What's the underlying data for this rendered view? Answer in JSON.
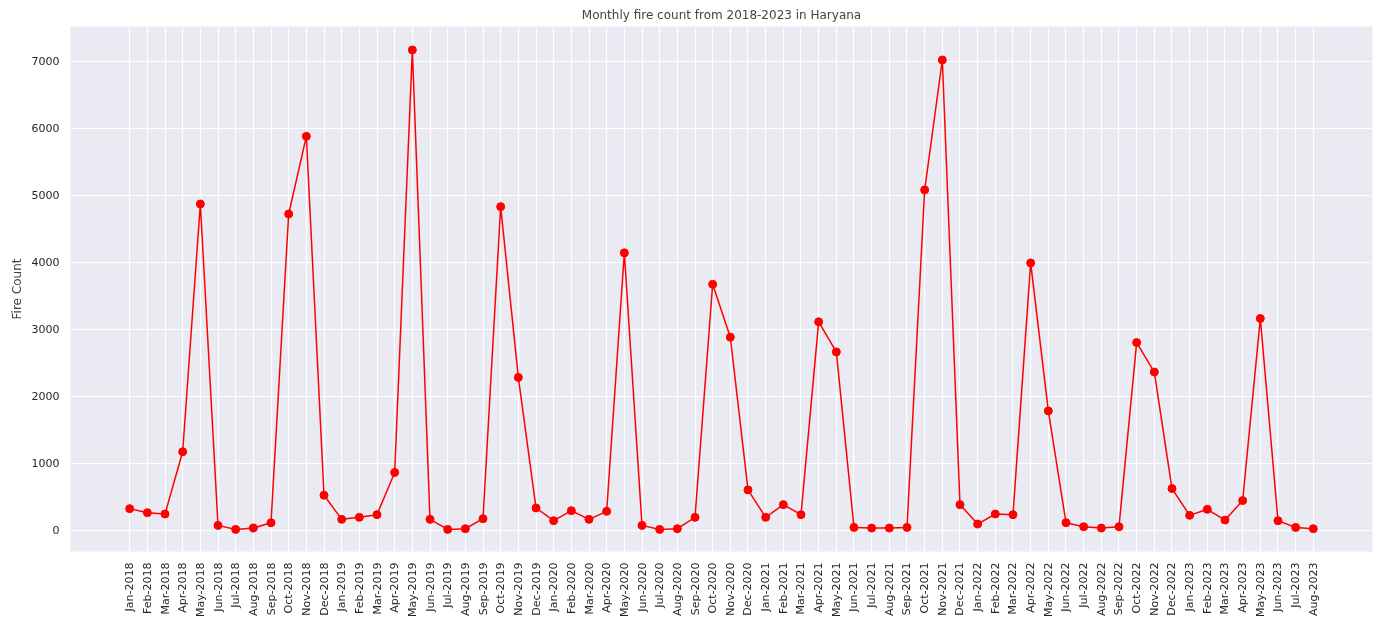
{
  "chart_data": {
    "type": "line",
    "title": "Monthly fire count from 2018-2023 in Haryana",
    "ylabel": "Fire Count",
    "categories": [
      "Jan-2018",
      "Feb-2018",
      "Mar-2018",
      "Apr-2018",
      "May-2018",
      "Jun-2018",
      "Jul-2018",
      "Aug-2018",
      "Sep-2018",
      "Oct-2018",
      "Nov-2018",
      "Dec-2018",
      "Jan-2019",
      "Feb-2019",
      "Mar-2019",
      "Apr-2019",
      "May-2019",
      "Jun-2019",
      "Jul-2019",
      "Aug-2019",
      "Sep-2019",
      "Oct-2019",
      "Nov-2019",
      "Dec-2019",
      "Jan-2020",
      "Feb-2020",
      "Mar-2020",
      "Apr-2020",
      "May-2020",
      "Jun-2020",
      "Jul-2020",
      "Aug-2020",
      "Sep-2020",
      "Oct-2020",
      "Nov-2020",
      "Dec-2020",
      "Jan-2021",
      "Feb-2021",
      "Mar-2021",
      "Apr-2021",
      "May-2021",
      "Jun-2021",
      "Jul-2021",
      "Aug-2021",
      "Sep-2021",
      "Oct-2021",
      "Nov-2021",
      "Dec-2021",
      "Jan-2022",
      "Feb-2022",
      "Mar-2022",
      "Apr-2022",
      "May-2022",
      "Jun-2022",
      "Jul-2022",
      "Aug-2022",
      "Sep-2022",
      "Oct-2022",
      "Nov-2022",
      "Dec-2022",
      "Jan-2023",
      "Feb-2023",
      "Mar-2023",
      "Apr-2023",
      "May-2023",
      "Jun-2023",
      "Jul-2023",
      "Aug-2023"
    ],
    "series": [
      {
        "color": "#ff0000",
        "values": [
          320,
          260,
          240,
          1170,
          4870,
          70,
          10,
          30,
          110,
          4720,
          5880,
          520,
          160,
          190,
          230,
          860,
          7170,
          160,
          10,
          20,
          170,
          4830,
          2280,
          330,
          140,
          290,
          160,
          280,
          4140,
          70,
          10,
          20,
          190,
          3670,
          2880,
          600,
          190,
          380,
          230,
          3110,
          2660,
          40,
          30,
          30,
          40,
          5080,
          7020,
          380,
          90,
          240,
          230,
          3990,
          1780,
          110,
          50,
          30,
          50,
          2800,
          2360,
          620,
          220,
          310,
          150,
          440,
          3160,
          140,
          40,
          20
        ]
      }
    ],
    "ylim": [
      -320,
      7520
    ],
    "yticks": [
      0,
      1000,
      2000,
      3000,
      4000,
      5000,
      6000,
      7000
    ],
    "grid": true,
    "marker": "circle",
    "line_style": "solid"
  }
}
